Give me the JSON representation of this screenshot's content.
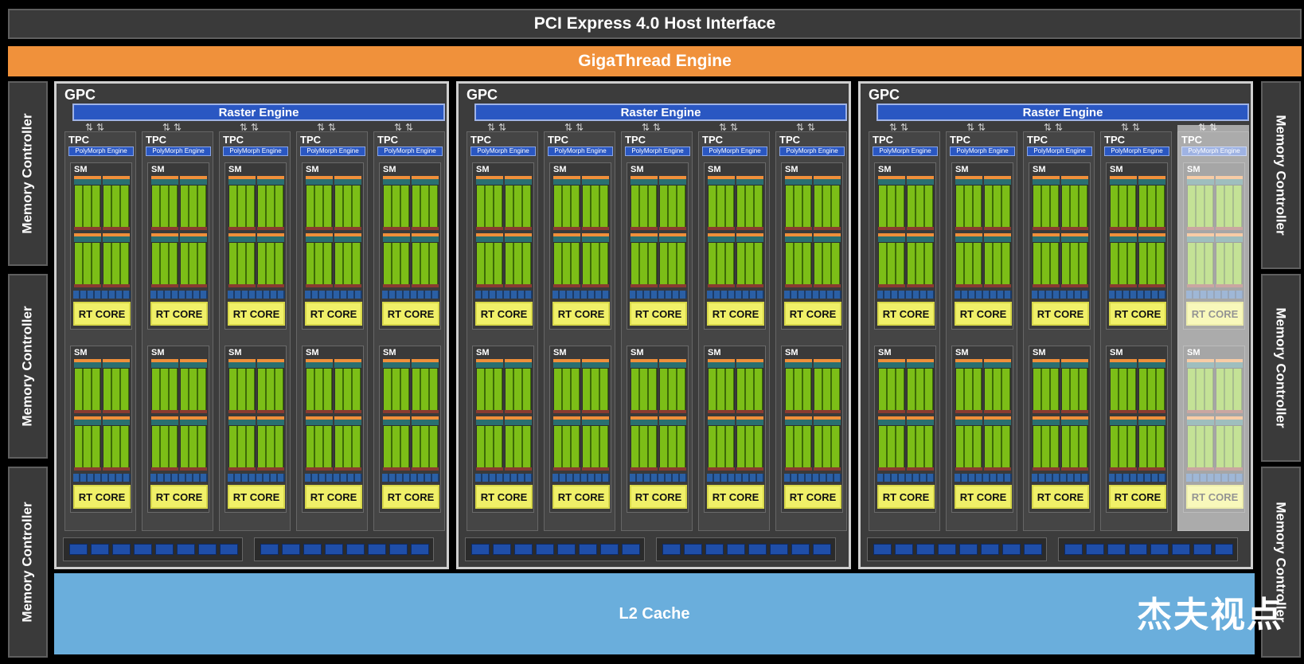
{
  "host_interface": "PCI Express 4.0 Host Interface",
  "thread_engine": "GigaThread Engine",
  "memory_controller_label": "Memory Controller",
  "gpc_label": "GPC",
  "raster_label": "Raster Engine",
  "tpc_label": "TPC",
  "polymorph_label": "PolyMorph Engine",
  "sm_label": "SM",
  "rt_core_label": "RT CORE",
  "l2_cache_label": "L2 Cache",
  "watermark": "杰夫视点",
  "colors": {
    "host_interface": "#3a3a3a",
    "gigathread": "#f0913b",
    "raster_engine": "#2a57c2",
    "cuda_cores": "#7cbe17",
    "rt_core": "#f0f068",
    "l2_cache": "#6aaedc"
  }
}
